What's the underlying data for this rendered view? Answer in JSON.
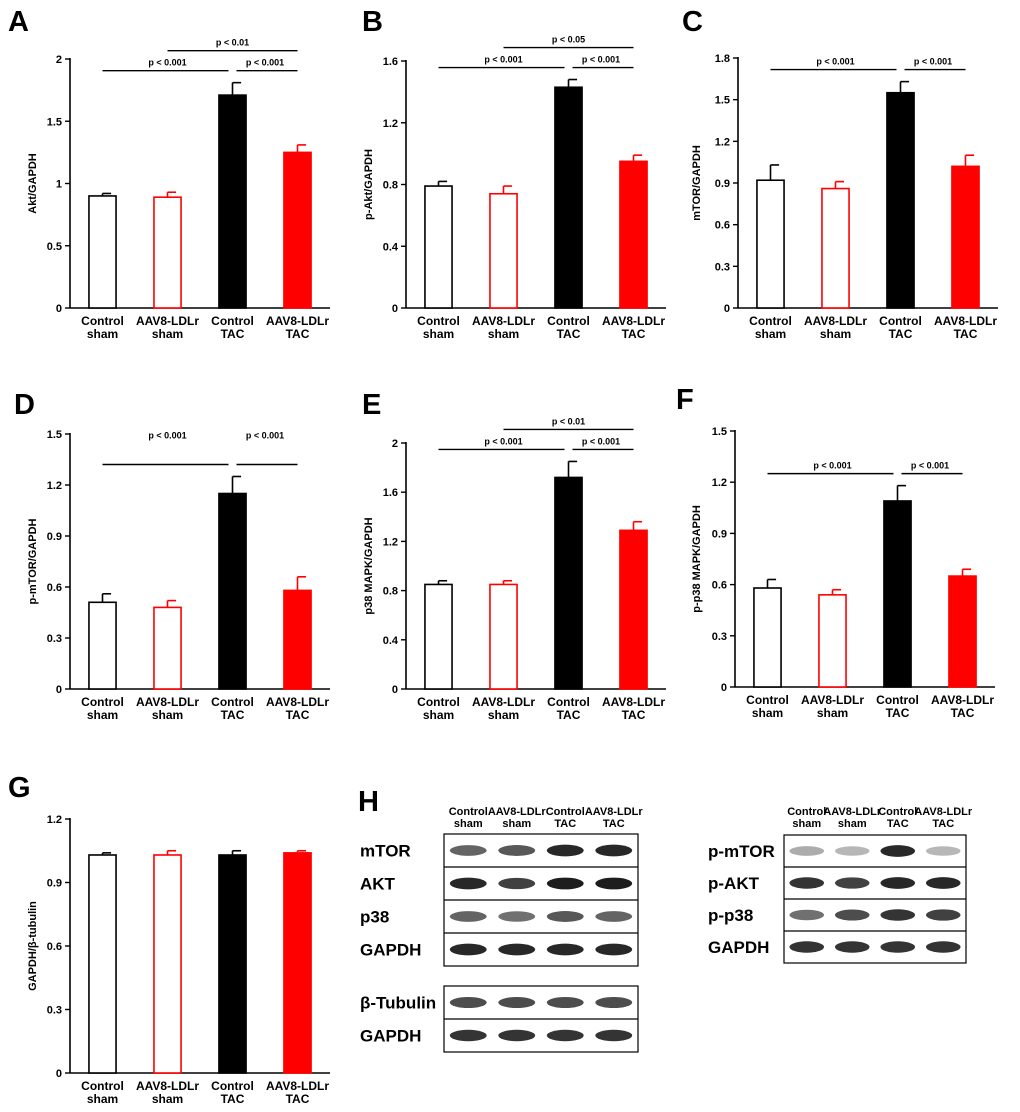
{
  "colors": {
    "control": "#000000",
    "ldlr": "#ff0000",
    "bg": "#ffffff"
  },
  "chart_data": [
    {
      "type": "bar",
      "panel": "A",
      "ylabel": "Akt/GAPDH",
      "categories": [
        "Control\nsham",
        "AAV8-LDLr\nsham",
        "Control\nTAC",
        "AAV8-LDLr\nTAC"
      ],
      "values": [
        0.9,
        0.89,
        1.71,
        1.25
      ],
      "errors": [
        0.02,
        0.04,
        0.1,
        0.06
      ],
      "fill": [
        "none",
        "none",
        "solid",
        "solid"
      ],
      "color": [
        "black",
        "red",
        "black",
        "red"
      ],
      "ylim": [
        0,
        2
      ],
      "yticks": [
        "0",
        "0.5",
        "1",
        "1.5",
        "2"
      ],
      "comparisons": [
        {
          "from": 0,
          "to": 2,
          "label": "p < 0.001",
          "level": 0
        },
        {
          "from": 2,
          "to": 3,
          "label": "p < 0.001",
          "level": 0
        },
        {
          "from": 1,
          "to": 3,
          "label": "p < 0.01",
          "level": 1
        }
      ]
    },
    {
      "type": "bar",
      "panel": "B",
      "ylabel": "p-Akt/GAPDH",
      "categories": [
        "Control\nsham",
        "AAV8-LDLr\nsham",
        "Control\nTAC",
        "AAV8-LDLr\nTAC"
      ],
      "values": [
        0.79,
        0.74,
        1.43,
        0.95
      ],
      "errors": [
        0.03,
        0.05,
        0.05,
        0.04
      ],
      "fill": [
        "none",
        "none",
        "solid",
        "solid"
      ],
      "color": [
        "black",
        "red",
        "black",
        "red"
      ],
      "ylim": [
        0,
        1.6
      ],
      "yticks": [
        "0",
        "0.4",
        "0.8",
        "1.2",
        "1.6"
      ],
      "comparisons": [
        {
          "from": 0,
          "to": 2,
          "label": "p < 0.001",
          "level": 0
        },
        {
          "from": 2,
          "to": 3,
          "label": "p < 0.001",
          "level": 0
        },
        {
          "from": 1,
          "to": 3,
          "label": "p < 0.05",
          "level": 1
        }
      ]
    },
    {
      "type": "bar",
      "panel": "C",
      "ylabel": "mTOR/GAPDH",
      "categories": [
        "Control\nsham",
        "AAV8-LDLr\nsham",
        "Control\nTAC",
        "AAV8-LDLr\nTAC"
      ],
      "values": [
        0.92,
        0.86,
        1.55,
        1.02
      ],
      "errors": [
        0.11,
        0.05,
        0.08,
        0.08
      ],
      "fill": [
        "none",
        "none",
        "solid",
        "solid"
      ],
      "color": [
        "black",
        "red",
        "black",
        "red"
      ],
      "ylim": [
        0,
        1.8
      ],
      "yticks": [
        "0",
        "0.3",
        "0.6",
        "0.9",
        "1.2",
        "1.5",
        "1.8"
      ],
      "comparisons": [
        {
          "from": 0,
          "to": 2,
          "label": "p < 0.001",
          "level": 0
        },
        {
          "from": 2,
          "to": 3,
          "label": "p < 0.001",
          "level": 0
        }
      ]
    },
    {
      "type": "bar",
      "panel": "D",
      "ylabel": "p-mTOR/GAPDH",
      "categories": [
        "Control\nsham",
        "AAV8-LDLr\nsham",
        "Control\nTAC",
        "AAV8-LDLr\nTAC"
      ],
      "values": [
        0.51,
        0.48,
        1.15,
        0.58
      ],
      "errors": [
        0.05,
        0.04,
        0.1,
        0.08
      ],
      "fill": [
        "none",
        "none",
        "solid",
        "solid"
      ],
      "color": [
        "black",
        "red",
        "black",
        "red"
      ],
      "ylim": [
        0,
        1.5
      ],
      "yticks": [
        "0",
        "0.3",
        "0.6",
        "0.9",
        "1.2",
        "1.5"
      ],
      "comparisons": [
        {
          "from": 0,
          "to": 2,
          "label": "p < 0.001",
          "level": 0,
          "label_high": true
        },
        {
          "from": 2,
          "to": 3,
          "label": "p < 0.001",
          "level": 0,
          "label_high": true
        }
      ]
    },
    {
      "type": "bar",
      "panel": "E",
      "ylabel": "p38 MAPK/GAPDH",
      "categories": [
        "Control\nsham",
        "AAV8-LDLr\nsham",
        "Control\nTAC",
        "AAV8-LDLr\nTAC"
      ],
      "values": [
        0.85,
        0.85,
        1.72,
        1.29
      ],
      "errors": [
        0.03,
        0.03,
        0.13,
        0.07
      ],
      "fill": [
        "none",
        "none",
        "solid",
        "solid"
      ],
      "color": [
        "black",
        "red",
        "black",
        "red"
      ],
      "ylim": [
        0,
        2
      ],
      "yticks": [
        "0",
        "0.4",
        "0.8",
        "1.2",
        "1.6",
        "2"
      ],
      "comparisons": [
        {
          "from": 0,
          "to": 2,
          "label": "p < 0.001",
          "level": 0
        },
        {
          "from": 2,
          "to": 3,
          "label": "p < 0.001",
          "level": 0
        },
        {
          "from": 1,
          "to": 3,
          "label": "p < 0.01",
          "level": 1
        }
      ]
    },
    {
      "type": "bar",
      "panel": "F",
      "ylabel": "p-p38 MAPK/GAPDH",
      "categories": [
        "Control\nsham",
        "AAV8-LDLr\nsham",
        "Control\nTAC",
        "AAV8-LDLr\nTAC"
      ],
      "values": [
        0.58,
        0.54,
        1.09,
        0.65
      ],
      "errors": [
        0.05,
        0.03,
        0.09,
        0.04
      ],
      "fill": [
        "none",
        "none",
        "solid",
        "solid"
      ],
      "color": [
        "black",
        "red",
        "black",
        "red"
      ],
      "ylim": [
        0,
        1.5
      ],
      "yticks": [
        "0",
        "0.3",
        "0.6",
        "0.9",
        "1.2",
        "1.5"
      ],
      "comparisons": [
        {
          "from": 0,
          "to": 2,
          "label": "p < 0.001",
          "level": 0
        },
        {
          "from": 2,
          "to": 3,
          "label": "p < 0.001",
          "level": 0
        }
      ]
    },
    {
      "type": "bar",
      "panel": "G",
      "ylabel": "GAPDH/β-tubulin",
      "categories": [
        "Control\nsham",
        "AAV8-LDLr\nsham",
        "Control\nTAC",
        "AAV8-LDLr\nTAC"
      ],
      "values": [
        1.03,
        1.03,
        1.03,
        1.04
      ],
      "errors": [
        0.01,
        0.02,
        0.02,
        0.01
      ],
      "fill": [
        "none",
        "none",
        "solid",
        "solid"
      ],
      "color": [
        "black",
        "red",
        "black",
        "red"
      ],
      "ylim": [
        0,
        1.2
      ],
      "yticks": [
        "0",
        "0.3",
        "0.6",
        "0.9",
        "1.2"
      ],
      "comparisons": []
    }
  ],
  "blots": {
    "panel": "H",
    "left": {
      "lanes": [
        "Control\nsham",
        "AAV8-LDLr\nsham",
        "Control\nTAC",
        "AAV8-LDLr\nTAC"
      ],
      "groups": [
        {
          "rows": [
            {
              "name": "mTOR",
              "intensity": [
                0.65,
                0.7,
                0.9,
                0.9
              ]
            },
            {
              "name": "AKT",
              "intensity": [
                0.9,
                0.8,
                0.95,
                0.95
              ]
            },
            {
              "name": "p38",
              "intensity": [
                0.65,
                0.6,
                0.7,
                0.65
              ]
            },
            {
              "name": "GAPDH",
              "intensity": [
                0.9,
                0.9,
                0.9,
                0.9
              ]
            }
          ]
        },
        {
          "rows": [
            {
              "name": "β-Tubulin",
              "intensity": [
                0.75,
                0.75,
                0.75,
                0.75
              ]
            },
            {
              "name": "GAPDH",
              "intensity": [
                0.85,
                0.85,
                0.85,
                0.85
              ]
            }
          ]
        }
      ]
    },
    "right": {
      "lanes": [
        "Control\nsham",
        "AAV8-LDLr\nsham",
        "Control\nTAC",
        "AAV8-LDLr\nTAC"
      ],
      "groups": [
        {
          "rows": [
            {
              "name": "p-mTOR",
              "intensity": [
                0.35,
                0.3,
                0.9,
                0.3
              ]
            },
            {
              "name": "p-AKT",
              "intensity": [
                0.85,
                0.8,
                0.9,
                0.9
              ]
            },
            {
              "name": "p-p38",
              "intensity": [
                0.6,
                0.75,
                0.85,
                0.8
              ]
            },
            {
              "name": "GAPDH",
              "intensity": [
                0.85,
                0.85,
                0.85,
                0.85
              ]
            }
          ]
        }
      ]
    }
  }
}
